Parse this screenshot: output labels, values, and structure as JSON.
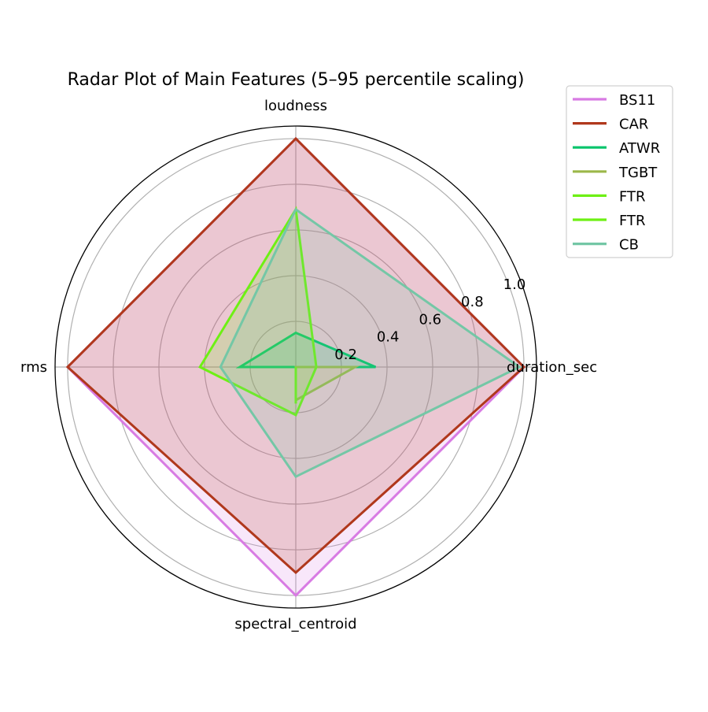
{
  "chart_data": {
    "type": "radar",
    "title": "Radar Plot of Main Features (5–95 percentile scaling)",
    "axes": [
      "duration_sec",
      "loudness",
      "rms",
      "spectral_centroid"
    ],
    "rlim": [
      0,
      1.055
    ],
    "rticks": [
      0.2,
      0.4,
      0.6,
      0.8,
      1.0
    ],
    "rtick_labels": [
      "0.2",
      "0.4",
      "0.6",
      "0.8",
      "1.0"
    ],
    "grid": true,
    "legend_placement": "upper-right outside",
    "series": [
      {
        "name": "BS11",
        "color": "#d87be3",
        "values": [
          1.0,
          1.0,
          1.0,
          1.0
        ]
      },
      {
        "name": "CAR",
        "color": "#b0381c",
        "values": [
          1.0,
          1.0,
          1.0,
          0.9
        ]
      },
      {
        "name": "ATWR",
        "color": "#00c46a",
        "values": [
          0.35,
          0.15,
          0.245,
          0.0
        ]
      },
      {
        "name": "TGBT",
        "color": "#9cb84a",
        "values": [
          0.26,
          0.0,
          0.0,
          0.145
        ]
      },
      {
        "name": "FTR",
        "color": "#6ef014",
        "values": [
          0.09,
          0.69,
          0.42,
          0.21
        ]
      },
      {
        "name": "FTR",
        "color": "#6ef014",
        "values": [
          0.0,
          0.0,
          0.0,
          0.16
        ]
      },
      {
        "name": "CB",
        "color": "#74c7a6",
        "values": [
          0.98,
          0.69,
          0.33,
          0.48
        ]
      }
    ]
  }
}
